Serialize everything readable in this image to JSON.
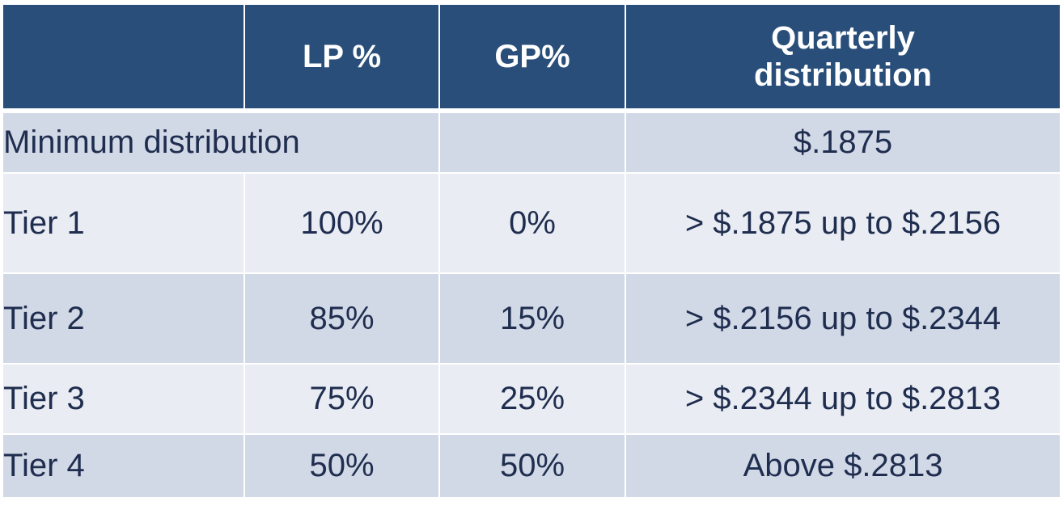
{
  "table": {
    "headers": [
      "",
      "LP %",
      "GP%",
      "Quarterly distribution"
    ],
    "header_split": {
      "line1": "Quarterly",
      "line2": "distribution"
    },
    "minimum_row": {
      "label": "Minimum distribution",
      "gp": "",
      "quarterly": "$.1875"
    },
    "tiers": [
      {
        "tier": "Tier 1",
        "lp": "100%",
        "gp": "0%",
        "quarterly": "> $.1875 up to $.2156"
      },
      {
        "tier": "Tier 2",
        "lp": "85%",
        "gp": "15%",
        "quarterly": "> $.2156 up to $.2344"
      },
      {
        "tier": "Tier 3",
        "lp": "75%",
        "gp": "25%",
        "quarterly": "> $.2344 up to $.2813"
      },
      {
        "tier": "Tier 4",
        "lp": "50%",
        "gp": "50%",
        "quarterly": "Above $.2813"
      }
    ]
  },
  "colors": {
    "header_bg": "#284e79",
    "row_dark": "#d1d8e6",
    "row_light": "#e9ecf3",
    "text": "#1f2d4f"
  }
}
